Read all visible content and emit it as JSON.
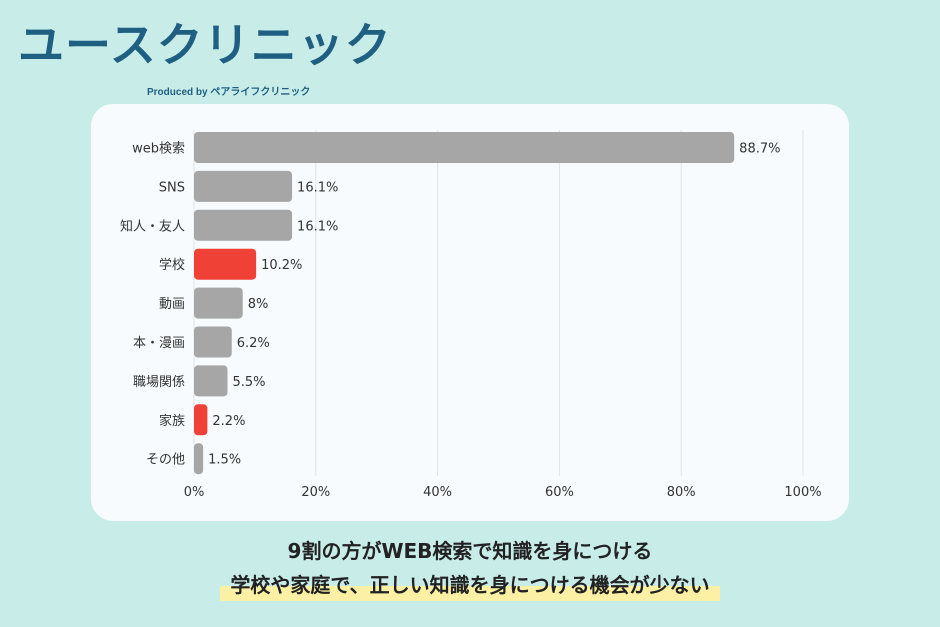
{
  "brand": {
    "name": "ユースクリニック",
    "sub": "Produced by ペアライフクリニック"
  },
  "colors": {
    "default_bar": "#a6a6a6",
    "highlight_bar": "#ef4136",
    "brand": "#1f5f82",
    "background": "#c8ede9",
    "highlight_marker": "#fbf0a4"
  },
  "chart_data": {
    "type": "bar",
    "orientation": "horizontal",
    "categories": [
      "web検索",
      "SNS",
      "知人・友人",
      "学校",
      "動画",
      "本・漫画",
      "職場関係",
      "家族",
      "その他"
    ],
    "values": [
      88.7,
      16.1,
      16.1,
      10.2,
      8,
      6.2,
      5.5,
      2.2,
      1.5
    ],
    "data_labels": [
      "88.7%",
      "16.1%",
      "16.1%",
      "10.2%",
      "8%",
      "6.2%",
      "5.5%",
      "2.2%",
      "1.5%"
    ],
    "highlighted": [
      "学校",
      "家族"
    ],
    "xlim": [
      0,
      100
    ],
    "x_ticks": [
      0,
      20,
      40,
      60,
      80,
      100
    ],
    "x_tick_labels": [
      "0%",
      "20%",
      "40%",
      "60%",
      "80%",
      "100%"
    ],
    "grid": true,
    "legend": "none"
  },
  "captions": {
    "line1": "9割の方がWEB検索で知識を身につける",
    "line2": "学校や家庭で、正しい知識を身につける機会が少ない"
  }
}
